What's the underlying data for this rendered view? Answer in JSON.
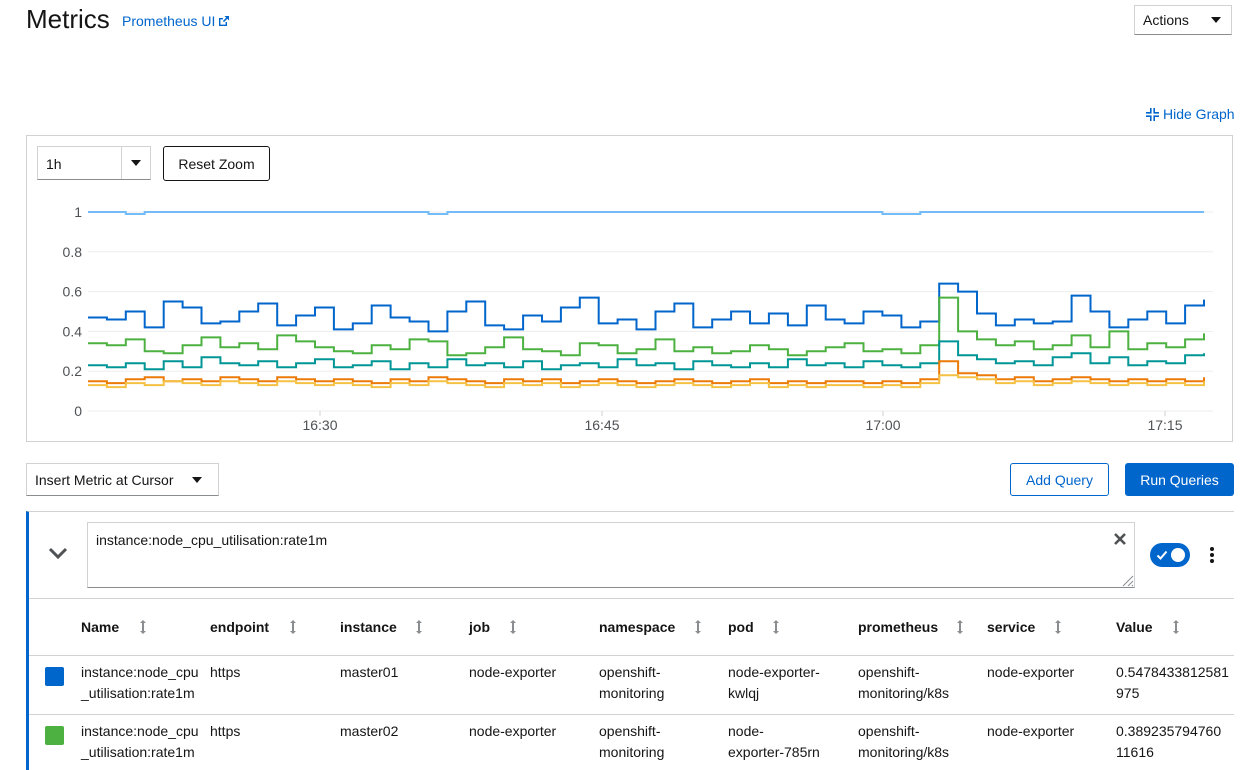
{
  "header": {
    "title": "Metrics",
    "prometheus_link": "Prometheus UI",
    "actions_label": "Actions"
  },
  "graph": {
    "hide_graph_label": "Hide Graph",
    "time_span": "1h",
    "reset_zoom_label": "Reset Zoom"
  },
  "chart_data": {
    "type": "line",
    "y_ticks": [
      "1",
      "0.8",
      "0.6",
      "0.4",
      "0.2",
      "0"
    ],
    "x_ticks": [
      "16:30",
      "16:45",
      "17:00",
      "17:15"
    ],
    "ylim": [
      0,
      1
    ],
    "grid": true,
    "series": [
      {
        "color": "#73bcf7",
        "values": [
          1.0,
          1.0,
          0.99,
          1.0,
          1.0,
          1.0,
          1.0,
          1.0,
          1.0,
          1.0,
          1.0,
          1.0,
          1.0,
          1.0,
          1.0,
          1.0,
          1.0,
          1.0,
          0.99,
          1.0,
          1.0,
          1.0,
          1.0,
          1.0,
          1.0,
          1.0,
          1.0,
          1.0,
          1.0,
          1.0,
          1.0,
          1.0,
          1.0,
          1.0,
          1.0,
          1.0,
          1.0,
          1.0,
          1.0,
          1.0,
          1.0,
          1.0,
          0.99,
          0.99,
          1.0,
          1.0,
          1.0,
          1.0,
          1.0,
          1.0,
          1.0,
          1.0,
          1.0,
          1.0,
          1.0,
          1.0,
          1.0,
          1.0,
          1.0,
          1.0
        ]
      },
      {
        "color": "#06c",
        "values": [
          0.47,
          0.46,
          0.5,
          0.42,
          0.55,
          0.52,
          0.44,
          0.45,
          0.5,
          0.54,
          0.43,
          0.48,
          0.52,
          0.41,
          0.44,
          0.53,
          0.47,
          0.45,
          0.4,
          0.5,
          0.55,
          0.43,
          0.41,
          0.48,
          0.45,
          0.52,
          0.57,
          0.44,
          0.46,
          0.41,
          0.5,
          0.54,
          0.42,
          0.46,
          0.5,
          0.44,
          0.49,
          0.43,
          0.53,
          0.46,
          0.44,
          0.5,
          0.48,
          0.42,
          0.45,
          0.64,
          0.6,
          0.49,
          0.43,
          0.46,
          0.44,
          0.45,
          0.58,
          0.5,
          0.42,
          0.46,
          0.5,
          0.44,
          0.53,
          0.56
        ]
      },
      {
        "color": "#4cb140",
        "values": [
          0.34,
          0.33,
          0.36,
          0.3,
          0.29,
          0.33,
          0.37,
          0.32,
          0.34,
          0.31,
          0.38,
          0.35,
          0.32,
          0.3,
          0.29,
          0.33,
          0.31,
          0.36,
          0.35,
          0.28,
          0.29,
          0.32,
          0.37,
          0.31,
          0.3,
          0.28,
          0.34,
          0.33,
          0.29,
          0.31,
          0.36,
          0.3,
          0.32,
          0.29,
          0.3,
          0.33,
          0.31,
          0.28,
          0.3,
          0.32,
          0.34,
          0.3,
          0.31,
          0.29,
          0.33,
          0.57,
          0.4,
          0.36,
          0.33,
          0.35,
          0.31,
          0.33,
          0.38,
          0.32,
          0.4,
          0.31,
          0.34,
          0.32,
          0.36,
          0.39
        ]
      },
      {
        "color": "#009596",
        "values": [
          0.23,
          0.22,
          0.24,
          0.21,
          0.25,
          0.22,
          0.27,
          0.24,
          0.23,
          0.25,
          0.22,
          0.24,
          0.26,
          0.22,
          0.23,
          0.25,
          0.21,
          0.24,
          0.22,
          0.26,
          0.23,
          0.24,
          0.22,
          0.25,
          0.21,
          0.23,
          0.24,
          0.22,
          0.26,
          0.23,
          0.24,
          0.21,
          0.25,
          0.23,
          0.22,
          0.24,
          0.22,
          0.26,
          0.23,
          0.24,
          0.22,
          0.25,
          0.23,
          0.22,
          0.24,
          0.35,
          0.28,
          0.26,
          0.24,
          0.25,
          0.23,
          0.27,
          0.29,
          0.24,
          0.27,
          0.23,
          0.25,
          0.24,
          0.28,
          0.29
        ]
      },
      {
        "color": "#ec7a08",
        "values": [
          0.15,
          0.14,
          0.16,
          0.17,
          0.15,
          0.16,
          0.15,
          0.17,
          0.16,
          0.15,
          0.17,
          0.16,
          0.15,
          0.16,
          0.15,
          0.14,
          0.16,
          0.15,
          0.17,
          0.16,
          0.15,
          0.14,
          0.16,
          0.15,
          0.16,
          0.14,
          0.15,
          0.16,
          0.15,
          0.14,
          0.15,
          0.16,
          0.15,
          0.14,
          0.15,
          0.16,
          0.14,
          0.15,
          0.14,
          0.15,
          0.15,
          0.14,
          0.15,
          0.14,
          0.16,
          0.25,
          0.19,
          0.18,
          0.16,
          0.17,
          0.15,
          0.16,
          0.17,
          0.16,
          0.15,
          0.16,
          0.15,
          0.16,
          0.15,
          0.17
        ]
      },
      {
        "color": "#f4c145",
        "values": [
          0.13,
          0.12,
          0.14,
          0.13,
          0.15,
          0.14,
          0.13,
          0.15,
          0.14,
          0.13,
          0.15,
          0.14,
          0.13,
          0.14,
          0.13,
          0.12,
          0.14,
          0.13,
          0.15,
          0.14,
          0.13,
          0.12,
          0.14,
          0.13,
          0.14,
          0.12,
          0.13,
          0.14,
          0.13,
          0.12,
          0.13,
          0.14,
          0.13,
          0.12,
          0.13,
          0.14,
          0.12,
          0.13,
          0.12,
          0.13,
          0.13,
          0.12,
          0.13,
          0.12,
          0.14,
          0.18,
          0.17,
          0.16,
          0.14,
          0.15,
          0.13,
          0.14,
          0.15,
          0.14,
          0.13,
          0.14,
          0.13,
          0.14,
          0.13,
          0.15
        ]
      }
    ]
  },
  "controls": {
    "insert_metric_label": "Insert Metric at Cursor",
    "add_query_label": "Add Query",
    "run_queries_label": "Run Queries"
  },
  "query": {
    "expression": "instance:node_cpu_utilisation:rate1m"
  },
  "table": {
    "columns": [
      "Name",
      "endpoint",
      "instance",
      "job",
      "namespace",
      "pod",
      "prometheus",
      "service",
      "Value"
    ],
    "rows": [
      {
        "color": "#06c",
        "name_1": "instance:node_cpu",
        "name_2": "_utilisation:rate1m",
        "endpoint": "https",
        "instance": "master01",
        "job": "node-exporter",
        "ns_1": "openshift-",
        "ns_2": "monitoring",
        "pod_1": "node-exporter-",
        "pod_2": "kwlqj",
        "prom_1": "openshift-",
        "prom_2": "monitoring/k8s",
        "service": "node-exporter",
        "val_1": "0.5478433812581",
        "val_2": "975"
      },
      {
        "color": "#4cb140",
        "name_1": "instance:node_cpu",
        "name_2": "_utilisation:rate1m",
        "endpoint": "https",
        "instance": "master02",
        "job": "node-exporter",
        "ns_1": "openshift-",
        "ns_2": "monitoring",
        "pod_1": "node-",
        "pod_2": "exporter-785rn",
        "prom_1": "openshift-",
        "prom_2": "monitoring/k8s",
        "service": "node-exporter",
        "val_1": "0.389235794760",
        "val_2": "11616"
      }
    ]
  }
}
